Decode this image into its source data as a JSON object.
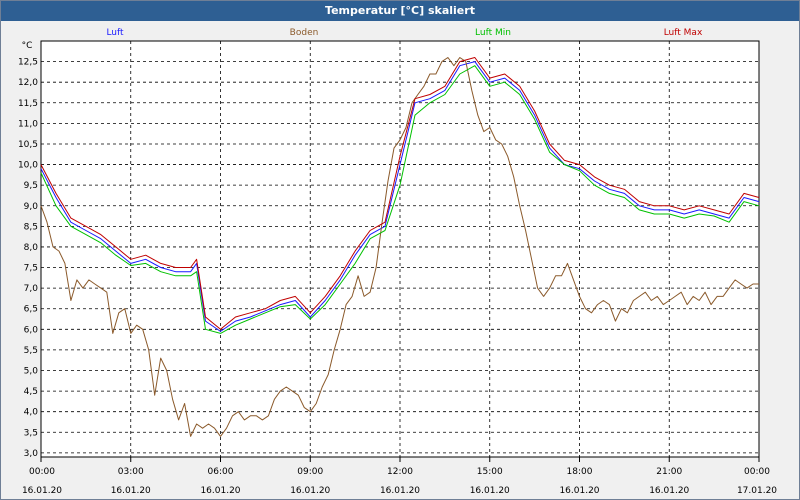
{
  "window": {
    "title": "Temperatur [°C] skaliert"
  },
  "chart_data": {
    "type": "line",
    "title": "Temperatur [°C] skaliert",
    "ylabel": "°C",
    "ylim": [
      2.9,
      13.0
    ],
    "yticks": [
      3.0,
      3.5,
      4.0,
      4.5,
      5.0,
      5.5,
      6.0,
      6.5,
      7.0,
      7.5,
      8.0,
      8.5,
      9.0,
      9.5,
      10.0,
      10.5,
      11.0,
      11.5,
      12.0,
      12.5
    ],
    "ytick_labels": [
      "3,0",
      "3,5",
      "4,0",
      "4,5",
      "5,0",
      "5,5",
      "6,0",
      "6,5",
      "7,0",
      "7,5",
      "8,0",
      "8,5",
      "9,0",
      "9,5",
      "10,0",
      "10,5",
      "11,0",
      "11,5",
      "12,0",
      "12,5"
    ],
    "xlim_hours": [
      0,
      24
    ],
    "xticks_hours": [
      0,
      3,
      6,
      9,
      12,
      15,
      18,
      21,
      24
    ],
    "xtick_times": [
      "00:00",
      "03:00",
      "06:00",
      "09:00",
      "12:00",
      "15:00",
      "18:00",
      "21:00",
      "00:00"
    ],
    "xtick_dates": [
      "16.01.20",
      "16.01.20",
      "16.01.20",
      "16.01.20",
      "16.01.20",
      "16.01.20",
      "16.01.20",
      "16.01.20",
      "17.01.20"
    ],
    "grid": true,
    "legend_position": "top",
    "series": [
      {
        "name": "Luft",
        "color": "#1a1aff",
        "x": [
          0,
          0.5,
          1,
          1.5,
          2,
          2.5,
          3,
          3.5,
          4,
          4.5,
          5,
          5.2,
          5.5,
          6,
          6.5,
          7,
          7.5,
          8,
          8.5,
          9,
          9.5,
          10,
          10.5,
          11,
          11.5,
          12,
          12.5,
          13,
          13.5,
          14,
          14.5,
          15,
          15.5,
          16,
          16.5,
          17,
          17.5,
          18,
          18.5,
          19,
          19.5,
          20,
          20.5,
          21,
          21.5,
          22,
          22.5,
          23,
          23.5,
          24
        ],
        "values": [
          9.9,
          9.2,
          8.6,
          8.4,
          8.2,
          7.9,
          7.6,
          7.7,
          7.5,
          7.4,
          7.4,
          7.6,
          6.2,
          5.95,
          6.2,
          6.3,
          6.45,
          6.6,
          6.7,
          6.3,
          6.7,
          7.2,
          7.8,
          8.3,
          8.5,
          10.0,
          11.5,
          11.6,
          11.8,
          12.4,
          12.5,
          12.0,
          12.1,
          11.8,
          11.2,
          10.4,
          10.0,
          9.9,
          9.6,
          9.4,
          9.3,
          9.0,
          8.9,
          8.9,
          8.8,
          8.9,
          8.8,
          8.7,
          9.2,
          9.1
        ]
      },
      {
        "name": "Boden",
        "color": "#8b5a2b",
        "x": [
          0,
          0.2,
          0.4,
          0.6,
          0.8,
          1,
          1.2,
          1.4,
          1.6,
          1.8,
          2,
          2.2,
          2.4,
          2.6,
          2.8,
          3,
          3.2,
          3.4,
          3.6,
          3.8,
          4,
          4.2,
          4.4,
          4.6,
          4.8,
          5,
          5.2,
          5.4,
          5.6,
          5.8,
          6,
          6.2,
          6.4,
          6.6,
          6.8,
          7,
          7.2,
          7.4,
          7.6,
          7.8,
          8,
          8.2,
          8.4,
          8.6,
          8.8,
          9,
          9.2,
          9.4,
          9.6,
          9.8,
          10,
          10.2,
          10.4,
          10.6,
          10.8,
          11,
          11.2,
          11.4,
          11.6,
          11.8,
          12,
          12.2,
          12.4,
          12.6,
          12.8,
          13,
          13.2,
          13.4,
          13.6,
          13.8,
          14,
          14.2,
          14.4,
          14.6,
          14.8,
          15,
          15.2,
          15.4,
          15.6,
          15.8,
          16,
          16.2,
          16.4,
          16.6,
          16.8,
          17,
          17.2,
          17.4,
          17.6,
          17.8,
          18,
          18.2,
          18.4,
          18.6,
          18.8,
          19,
          19.2,
          19.4,
          19.6,
          19.8,
          20,
          20.2,
          20.4,
          20.6,
          20.8,
          21,
          21.2,
          21.4,
          21.6,
          21.8,
          22,
          22.2,
          22.4,
          22.6,
          22.8,
          23,
          23.2,
          23.4,
          23.6,
          23.8,
          24
        ],
        "values": [
          9.0,
          8.6,
          8.0,
          7.9,
          7.6,
          6.7,
          7.2,
          7.0,
          7.2,
          7.1,
          7.0,
          6.9,
          5.9,
          6.4,
          6.5,
          5.9,
          6.1,
          6.0,
          5.5,
          4.4,
          5.3,
          5.0,
          4.3,
          3.8,
          4.2,
          3.4,
          3.7,
          3.6,
          3.7,
          3.6,
          3.4,
          3.6,
          3.9,
          4.0,
          3.8,
          3.9,
          3.9,
          3.8,
          3.9,
          4.3,
          4.5,
          4.6,
          4.5,
          4.4,
          4.1,
          4.0,
          4.2,
          4.6,
          4.9,
          5.5,
          6.0,
          6.6,
          6.8,
          7.3,
          6.8,
          6.9,
          7.5,
          8.6,
          9.6,
          10.4,
          10.6,
          10.9,
          11.5,
          11.7,
          11.9,
          12.2,
          12.2,
          12.5,
          12.6,
          12.4,
          12.6,
          12.5,
          11.8,
          11.2,
          10.8,
          10.9,
          10.6,
          10.5,
          10.2,
          9.7,
          9.0,
          8.4,
          7.7,
          7.0,
          6.8,
          7.0,
          7.3,
          7.3,
          7.6,
          7.2,
          6.8,
          6.5,
          6.4,
          6.6,
          6.7,
          6.6,
          6.2,
          6.5,
          6.4,
          6.7,
          6.8,
          6.9,
          6.7,
          6.8,
          6.6,
          6.7,
          6.8,
          6.9,
          6.6,
          6.8,
          6.7,
          6.9,
          6.6,
          6.8,
          6.8,
          7.0,
          7.2,
          7.1,
          7.0,
          7.1,
          7.1
        ]
      },
      {
        "name": "Luft Min",
        "color": "#00c000",
        "x": [
          0,
          0.5,
          1,
          1.5,
          2,
          2.5,
          3,
          3.5,
          4,
          4.5,
          5,
          5.2,
          5.5,
          6,
          6.5,
          7,
          7.5,
          8,
          8.5,
          9,
          9.5,
          10,
          10.5,
          11,
          11.5,
          12,
          12.5,
          13,
          13.5,
          14,
          14.5,
          15,
          15.5,
          16,
          16.5,
          17,
          17.5,
          18,
          18.5,
          19,
          19.5,
          20,
          20.5,
          21,
          21.5,
          22,
          22.5,
          23,
          23.5,
          24
        ],
        "values": [
          9.8,
          9.0,
          8.5,
          8.3,
          8.1,
          7.8,
          7.55,
          7.6,
          7.4,
          7.3,
          7.3,
          7.4,
          6.0,
          5.9,
          6.1,
          6.25,
          6.4,
          6.55,
          6.6,
          6.25,
          6.6,
          7.1,
          7.6,
          8.2,
          8.4,
          9.5,
          11.2,
          11.5,
          11.7,
          12.2,
          12.4,
          11.9,
          12.0,
          11.7,
          11.1,
          10.3,
          10.0,
          9.85,
          9.5,
          9.3,
          9.2,
          8.9,
          8.8,
          8.8,
          8.7,
          8.8,
          8.75,
          8.6,
          9.1,
          9.0
        ]
      },
      {
        "name": "Luft Max",
        "color": "#c00000",
        "x": [
          0,
          0.5,
          1,
          1.5,
          2,
          2.5,
          3,
          3.5,
          4,
          4.5,
          5,
          5.2,
          5.5,
          6,
          6.5,
          7,
          7.5,
          8,
          8.5,
          9,
          9.5,
          10,
          10.5,
          11,
          11.5,
          12,
          12.5,
          13,
          13.5,
          14,
          14.5,
          15,
          15.5,
          16,
          16.5,
          17,
          17.5,
          18,
          18.5,
          19,
          19.5,
          20,
          20.5,
          21,
          21.5,
          22,
          22.5,
          23,
          23.5,
          24
        ],
        "values": [
          10.0,
          9.3,
          8.7,
          8.5,
          8.3,
          8.0,
          7.7,
          7.8,
          7.6,
          7.5,
          7.5,
          7.7,
          6.3,
          6.0,
          6.3,
          6.4,
          6.5,
          6.7,
          6.8,
          6.4,
          6.8,
          7.3,
          7.9,
          8.4,
          8.6,
          10.2,
          11.6,
          11.7,
          11.9,
          12.5,
          12.6,
          12.1,
          12.2,
          11.9,
          11.3,
          10.5,
          10.1,
          10.0,
          9.7,
          9.5,
          9.4,
          9.1,
          9.0,
          9.0,
          8.9,
          9.0,
          8.9,
          8.8,
          9.3,
          9.2
        ]
      }
    ]
  }
}
